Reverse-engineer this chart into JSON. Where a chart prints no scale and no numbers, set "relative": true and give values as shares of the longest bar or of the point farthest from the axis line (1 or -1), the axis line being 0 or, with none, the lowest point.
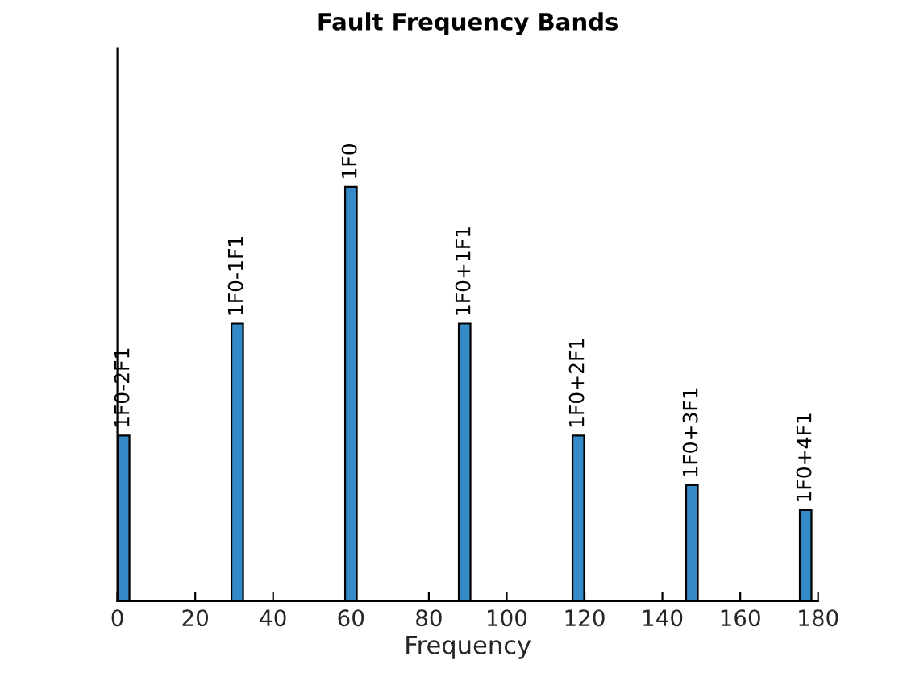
{
  "chart_data": {
    "type": "bar",
    "title": "Fault Frequency Bands",
    "xlabel": "Frequency",
    "x": [
      1.6,
      30.8,
      60,
      89.2,
      118.4,
      147.6,
      176.8
    ],
    "values": [
      0.4,
      0.67,
      1,
      0.67,
      0.4,
      0.28,
      0.22
    ],
    "color": "#348ac7",
    "relative": true,
    "xlim": [
      0,
      180
    ],
    "xticks": [
      0,
      20,
      40,
      60,
      80,
      100,
      120,
      140,
      160,
      180
    ],
    "annotations": [
      {
        "text": "1F0-2F1",
        "x": 1.6,
        "y": 0.4
      },
      {
        "text": "1F0-1F1",
        "x": 30.8,
        "y": 0.67
      },
      {
        "text": "1F0",
        "x": 60,
        "y": 1
      },
      {
        "text": "1F0+1F1",
        "x": 89.2,
        "y": 0.67
      },
      {
        "text": "1F0+2F1",
        "x": 118.4,
        "y": 0.4
      },
      {
        "text": "1F0+3F1",
        "x": 147.6,
        "y": 0.28
      },
      {
        "text": "1F0+4F1",
        "x": 176.8,
        "y": 0.22
      }
    ]
  }
}
